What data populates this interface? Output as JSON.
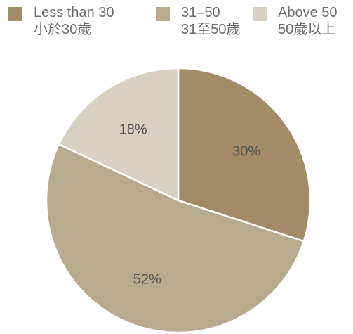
{
  "chart_data": {
    "type": "pie",
    "legend": {
      "placement": "top",
      "entries": [
        {
          "label_en": "Less than 30",
          "label_zh": "小於30歲",
          "color": "#a38b67"
        },
        {
          "label_en": "31–50",
          "label_zh": "31至50歲",
          "color": "#b8aa8c"
        },
        {
          "label_en": "Above 50",
          "label_zh": "50歲以上",
          "color": "#d8d0c0"
        }
      ]
    },
    "slices": [
      {
        "value": 30,
        "label": "30%",
        "color": "#a38b67"
      },
      {
        "value": 52,
        "label": "52%",
        "color": "#b8aa8c"
      },
      {
        "value": 18,
        "label": "18%",
        "color": "#d8d0c0"
      }
    ]
  }
}
